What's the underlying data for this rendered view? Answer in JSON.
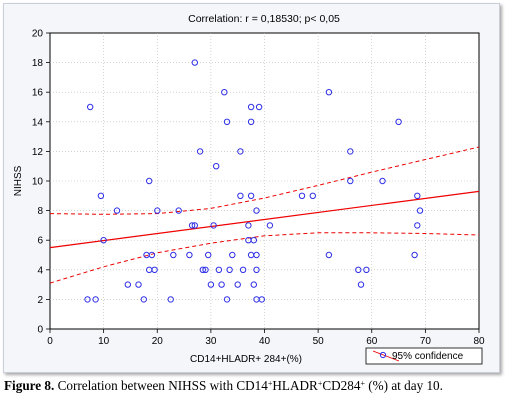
{
  "chart_data": {
    "type": "scatter",
    "title": "Correlation: r = 0,18530; p< 0,05",
    "xlabel": "CD14+HLADR+ 284+(%)",
    "ylabel": "NIHSS",
    "xlim": [
      0,
      80
    ],
    "ylim": [
      0,
      20
    ],
    "x_ticks": [
      "0",
      "10",
      "20",
      "30",
      "40",
      "50",
      "60",
      "70",
      "80"
    ],
    "y_ticks": [
      "0",
      "2",
      "4",
      "6",
      "8",
      "10",
      "12",
      "14",
      "16",
      "18",
      "20"
    ],
    "grid": true,
    "legend": {
      "position": "bottom-right",
      "entries": [
        "95% confidence"
      ]
    },
    "colors": {
      "points": "#2e2ee6",
      "fit": "#ee0000",
      "confidence": "#ee0000"
    },
    "points": [
      {
        "x": 7,
        "y": 2
      },
      {
        "x": 7.5,
        "y": 15
      },
      {
        "x": 8.5,
        "y": 2
      },
      {
        "x": 9.5,
        "y": 9
      },
      {
        "x": 10,
        "y": 6
      },
      {
        "x": 12.5,
        "y": 8
      },
      {
        "x": 14.5,
        "y": 3
      },
      {
        "x": 16.5,
        "y": 3
      },
      {
        "x": 17.5,
        "y": 2
      },
      {
        "x": 18,
        "y": 5
      },
      {
        "x": 18.5,
        "y": 4
      },
      {
        "x": 18.5,
        "y": 10
      },
      {
        "x": 19,
        "y": 5
      },
      {
        "x": 19.5,
        "y": 4
      },
      {
        "x": 20,
        "y": 8
      },
      {
        "x": 22.5,
        "y": 2
      },
      {
        "x": 23,
        "y": 5
      },
      {
        "x": 24,
        "y": 8
      },
      {
        "x": 26,
        "y": 5
      },
      {
        "x": 26.5,
        "y": 7
      },
      {
        "x": 27,
        "y": 7
      },
      {
        "x": 27,
        "y": 18
      },
      {
        "x": 28,
        "y": 12
      },
      {
        "x": 28.5,
        "y": 4
      },
      {
        "x": 29,
        "y": 4
      },
      {
        "x": 29.5,
        "y": 5
      },
      {
        "x": 30,
        "y": 3
      },
      {
        "x": 30.5,
        "y": 7
      },
      {
        "x": 31,
        "y": 11
      },
      {
        "x": 31.5,
        "y": 4
      },
      {
        "x": 32,
        "y": 3
      },
      {
        "x": 32.5,
        "y": 16
      },
      {
        "x": 33,
        "y": 2
      },
      {
        "x": 33,
        "y": 14
      },
      {
        "x": 33.5,
        "y": 4
      },
      {
        "x": 34,
        "y": 5
      },
      {
        "x": 35,
        "y": 3
      },
      {
        "x": 35.5,
        "y": 12
      },
      {
        "x": 35.5,
        "y": 9
      },
      {
        "x": 36,
        "y": 4
      },
      {
        "x": 37,
        "y": 7
      },
      {
        "x": 37,
        "y": 6
      },
      {
        "x": 37.5,
        "y": 15
      },
      {
        "x": 37.5,
        "y": 14
      },
      {
        "x": 37.5,
        "y": 9
      },
      {
        "x": 37.5,
        "y": 5
      },
      {
        "x": 38,
        "y": 6
      },
      {
        "x": 38,
        "y": 3
      },
      {
        "x": 38.5,
        "y": 8
      },
      {
        "x": 38.5,
        "y": 2
      },
      {
        "x": 38.5,
        "y": 5
      },
      {
        "x": 38.5,
        "y": 4
      },
      {
        "x": 39,
        "y": 15
      },
      {
        "x": 39.5,
        "y": 2
      },
      {
        "x": 41,
        "y": 7
      },
      {
        "x": 47,
        "y": 9
      },
      {
        "x": 49,
        "y": 9
      },
      {
        "x": 52,
        "y": 16
      },
      {
        "x": 52,
        "y": 5
      },
      {
        "x": 56,
        "y": 12
      },
      {
        "x": 56,
        "y": 10
      },
      {
        "x": 57.5,
        "y": 4
      },
      {
        "x": 58,
        "y": 3
      },
      {
        "x": 59,
        "y": 4
      },
      {
        "x": 62,
        "y": 10
      },
      {
        "x": 65,
        "y": 14
      },
      {
        "x": 68,
        "y": 5
      },
      {
        "x": 68.5,
        "y": 9
      },
      {
        "x": 68.5,
        "y": 7
      },
      {
        "x": 69,
        "y": 8
      }
    ],
    "fit_line": {
      "x": [
        0,
        80
      ],
      "y": [
        5.5,
        9.3
      ]
    },
    "confidence_upper": {
      "x": [
        0,
        10,
        20,
        30,
        40,
        50,
        60,
        70,
        80
      ],
      "y": [
        7.8,
        7.75,
        7.8,
        8.15,
        8.85,
        9.7,
        10.6,
        11.45,
        12.3
      ]
    },
    "confidence_lower": {
      "x": [
        0,
        10,
        20,
        30,
        40,
        50,
        60,
        70,
        80
      ],
      "y": [
        3.1,
        4.2,
        5.15,
        5.8,
        6.3,
        6.5,
        6.5,
        6.45,
        6.35
      ]
    }
  },
  "caption": {
    "label": "Figure 8.",
    "text_before": " Correlation between NIHSS with CD14",
    "sup1": "+",
    "mid1": "HLADR",
    "sup2": "+",
    "mid2": "CD284",
    "sup3": "+",
    "text_after": " (%) at day 10."
  }
}
